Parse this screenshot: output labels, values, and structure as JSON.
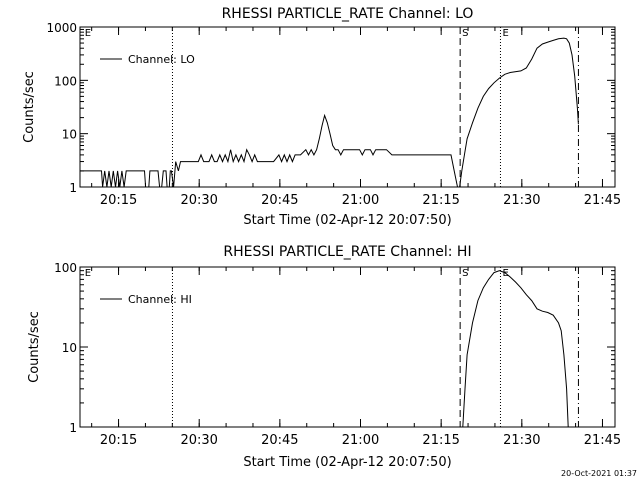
{
  "chart_data": [
    {
      "type": "line",
      "title": "RHESSI PARTICLE_RATE Channel: LO",
      "xlabel": "Start Time (02-Apr-12 20:07:50)",
      "ylabel": "Counts/sec",
      "y_scale": "log",
      "ylim": [
        1,
        1000
      ],
      "y_ticks": [
        {
          "v": 1,
          "label": "1"
        },
        {
          "v": 10,
          "label": "10"
        },
        {
          "v": 100,
          "label": "100"
        },
        {
          "v": 1000,
          "label": "1000"
        }
      ],
      "xlim_minutes": [
        0,
        99.5
      ],
      "x_ticks": [
        {
          "v": 7.17,
          "label": "20:15"
        },
        {
          "v": 22.17,
          "label": "20:30"
        },
        {
          "v": 37.17,
          "label": "20:45"
        },
        {
          "v": 52.17,
          "label": "21:00"
        },
        {
          "v": 67.17,
          "label": "21:15"
        },
        {
          "v": 82.17,
          "label": "21:30"
        },
        {
          "v": 97.17,
          "label": "21:45"
        }
      ],
      "legend": {
        "label": "Channel: LO",
        "position": "top-left"
      },
      "corner_labels": [
        {
          "text": "E",
          "at": 0.5
        }
      ],
      "markers": [
        {
          "x": 17.2,
          "style": "dotted",
          "label": ""
        },
        {
          "x": 70.7,
          "style": "dashed",
          "label": "S"
        },
        {
          "x": 78.2,
          "style": "dotted",
          "label": "E"
        },
        {
          "x": 92.7,
          "style": "dashdot",
          "label": ""
        }
      ],
      "series": [
        {
          "name": "Channel: LO",
          "points": [
            [
              0,
              2
            ],
            [
              1,
              2
            ],
            [
              2,
              2
            ],
            [
              3,
              2
            ],
            [
              4,
              2
            ],
            [
              4.2,
              1
            ],
            [
              4.6,
              2
            ],
            [
              5,
              1
            ],
            [
              5.4,
              2
            ],
            [
              5.8,
              1
            ],
            [
              6.2,
              2
            ],
            [
              6.6,
              1
            ],
            [
              7,
              2
            ],
            [
              7.4,
              1
            ],
            [
              7.8,
              2
            ],
            [
              8.2,
              1
            ],
            [
              8.6,
              2
            ],
            [
              9,
              2
            ],
            [
              10,
              2
            ],
            [
              11,
              2
            ],
            [
              12,
              2
            ],
            [
              12.2,
              1
            ],
            [
              12.8,
              1
            ],
            [
              13,
              2
            ],
            [
              14,
              2
            ],
            [
              14.5,
              2
            ],
            [
              14.8,
              1
            ],
            [
              15.2,
              1
            ],
            [
              15.5,
              2
            ],
            [
              16,
              2
            ],
            [
              16.2,
              1
            ],
            [
              16.6,
              1
            ],
            [
              16.8,
              2
            ],
            [
              17,
              2
            ],
            [
              17.4,
              1
            ],
            [
              17.8,
              3
            ],
            [
              18.3,
              2
            ],
            [
              18.7,
              3
            ],
            [
              20,
              3
            ],
            [
              21,
              3
            ],
            [
              22,
              3
            ],
            [
              22.5,
              4
            ],
            [
              23,
              3
            ],
            [
              24,
              3
            ],
            [
              24.5,
              4
            ],
            [
              25,
              3
            ],
            [
              25.5,
              3
            ],
            [
              26,
              4
            ],
            [
              26.5,
              3
            ],
            [
              27,
              4
            ],
            [
              27.5,
              3
            ],
            [
              28,
              5
            ],
            [
              28.5,
              3
            ],
            [
              29,
              4
            ],
            [
              29.5,
              3
            ],
            [
              30,
              4
            ],
            [
              30.5,
              3
            ],
            [
              31,
              5
            ],
            [
              31.5,
              4
            ],
            [
              32,
              3
            ],
            [
              32.5,
              4
            ],
            [
              33,
              3
            ],
            [
              34,
              3
            ],
            [
              35,
              3
            ],
            [
              36,
              3
            ],
            [
              37,
              4
            ],
            [
              37.5,
              3
            ],
            [
              38,
              4
            ],
            [
              38.5,
              3
            ],
            [
              39,
              4
            ],
            [
              39.5,
              3
            ],
            [
              40,
              4
            ],
            [
              41,
              4
            ],
            [
              42,
              5
            ],
            [
              42.5,
              4
            ],
            [
              43,
              5
            ],
            [
              43.5,
              4
            ],
            [
              44,
              5
            ],
            [
              44.5,
              8
            ],
            [
              45,
              14
            ],
            [
              45.5,
              22
            ],
            [
              46,
              16
            ],
            [
              46.5,
              10
            ],
            [
              47,
              6
            ],
            [
              47.5,
              5
            ],
            [
              48,
              5
            ],
            [
              48.5,
              4
            ],
            [
              49,
              5
            ],
            [
              50,
              5
            ],
            [
              51,
              5
            ],
            [
              52,
              5
            ],
            [
              52.5,
              4
            ],
            [
              53,
              5
            ],
            [
              54,
              5
            ],
            [
              54.5,
              4
            ],
            [
              55,
              5
            ],
            [
              56,
              5
            ],
            [
              57,
              5
            ],
            [
              58,
              4
            ],
            [
              59,
              4
            ],
            [
              60,
              4
            ],
            [
              61,
              4
            ],
            [
              62,
              4
            ],
            [
              63,
              4
            ],
            [
              64,
              4
            ],
            [
              65,
              4
            ],
            [
              66,
              4
            ],
            [
              67,
              4
            ],
            [
              68,
              4
            ],
            [
              69,
              4
            ],
            [
              69.6,
              2
            ],
            [
              70.2,
              1
            ],
            [
              70.6,
              1
            ],
            [
              71,
              2
            ],
            [
              71.5,
              4
            ],
            [
              72,
              8
            ],
            [
              73,
              16
            ],
            [
              74,
              30
            ],
            [
              75,
              50
            ],
            [
              76,
              70
            ],
            [
              77,
              90
            ],
            [
              78,
              110
            ],
            [
              79,
              130
            ],
            [
              80,
              140
            ],
            [
              82,
              150
            ],
            [
              83,
              170
            ],
            [
              84,
              250
            ],
            [
              85,
              400
            ],
            [
              86,
              480
            ],
            [
              87,
              520
            ],
            [
              88,
              560
            ],
            [
              89,
              600
            ],
            [
              90,
              620
            ],
            [
              90.5,
              600
            ],
            [
              91,
              500
            ],
            [
              91.5,
              300
            ],
            [
              92,
              120
            ],
            [
              92.5,
              30
            ],
            [
              92.7,
              15
            ]
          ]
        }
      ]
    },
    {
      "type": "line",
      "title": "RHESSI PARTICLE_RATE Channel: HI",
      "xlabel": "Start Time (02-Apr-12 20:07:50)",
      "ylabel": "Counts/sec",
      "y_scale": "log",
      "ylim": [
        1,
        100
      ],
      "y_ticks": [
        {
          "v": 1,
          "label": "1"
        },
        {
          "v": 10,
          "label": "10"
        },
        {
          "v": 100,
          "label": "100"
        }
      ],
      "xlim_minutes": [
        0,
        99.5
      ],
      "x_ticks": [
        {
          "v": 7.17,
          "label": "20:15"
        },
        {
          "v": 22.17,
          "label": "20:30"
        },
        {
          "v": 37.17,
          "label": "20:45"
        },
        {
          "v": 52.17,
          "label": "21:00"
        },
        {
          "v": 67.17,
          "label": "21:15"
        },
        {
          "v": 82.17,
          "label": "21:30"
        },
        {
          "v": 97.17,
          "label": "21:45"
        }
      ],
      "legend": {
        "label": "Channel: HI",
        "position": "top-left"
      },
      "corner_labels": [
        {
          "text": "E",
          "at": 0.5
        }
      ],
      "markers": [
        {
          "x": 17.2,
          "style": "dotted",
          "label": ""
        },
        {
          "x": 70.7,
          "style": "dashed",
          "label": "S"
        },
        {
          "x": 78.2,
          "style": "dotted",
          "label": "E"
        },
        {
          "x": 92.7,
          "style": "dashdot",
          "label": ""
        }
      ],
      "series": [
        {
          "name": "Channel: HI",
          "points": [
            [
              71.2,
              1
            ],
            [
              71.6,
              3
            ],
            [
              72,
              8
            ],
            [
              73,
              20
            ],
            [
              74,
              38
            ],
            [
              75,
              55
            ],
            [
              76,
              70
            ],
            [
              77,
              85
            ],
            [
              78,
              90
            ],
            [
              79,
              85
            ],
            [
              80,
              75
            ],
            [
              81,
              65
            ],
            [
              82,
              55
            ],
            [
              83,
              45
            ],
            [
              84,
              38
            ],
            [
              85,
              30
            ],
            [
              86,
              28
            ],
            [
              87,
              27
            ],
            [
              88,
              25
            ],
            [
              89,
              20
            ],
            [
              89.5,
              16
            ],
            [
              90,
              8
            ],
            [
              90.5,
              3
            ],
            [
              90.8,
              1
            ]
          ]
        }
      ]
    }
  ],
  "footer": {
    "timestamp": "20-Oct-2021 01:37"
  }
}
